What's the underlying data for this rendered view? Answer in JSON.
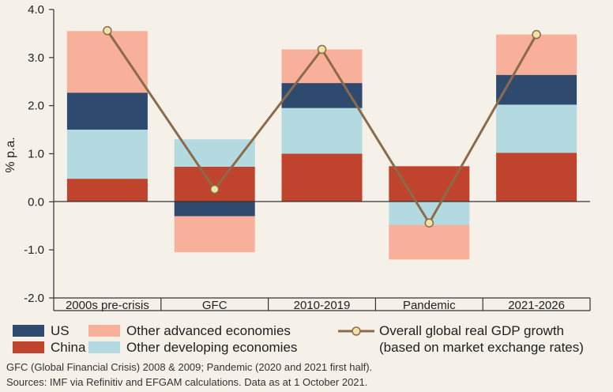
{
  "chart_data": {
    "type": "bar",
    "stacked": true,
    "categories": [
      "2000s pre-crisis",
      "GFC",
      "2010-2019",
      "Pandemic",
      "2021-2026"
    ],
    "ylabel": "% p.a.",
    "ylim": [
      -2.0,
      4.0
    ],
    "yticks": [
      -2.0,
      -1.0,
      0.0,
      1.0,
      2.0,
      3.0,
      4.0
    ],
    "ytick_labels": [
      "-2.0",
      "-1.0",
      "0.0",
      "1.0",
      "2.0",
      "3.0",
      "4.0"
    ],
    "series": [
      {
        "name": "China",
        "color": "#c0432d",
        "values": [
          0.48,
          0.73,
          1.0,
          0.74,
          1.02
        ]
      },
      {
        "name": "Other developing economies",
        "color": "#b3dae0",
        "values": [
          1.02,
          0.57,
          0.95,
          -0.48,
          1.0
        ]
      },
      {
        "name": "US",
        "color": "#2f4a6f",
        "values": [
          0.77,
          -0.3,
          0.52,
          0.0,
          0.62
        ]
      },
      {
        "name": "Other advanced economies",
        "color": "#f8b09a",
        "values": [
          1.28,
          -0.75,
          0.7,
          -0.72,
          0.84
        ]
      }
    ],
    "line": {
      "name": "Overall global real GDP growth (based on market exchange rates)",
      "color": "#8b6b4a",
      "values": [
        3.56,
        0.26,
        3.17,
        -0.44,
        3.48
      ]
    }
  },
  "legend": {
    "us": "US",
    "china": "China",
    "other_advanced": "Other advanced economies",
    "other_developing": "Other developing economies",
    "gdp_line_1": "Overall global real GDP growth",
    "gdp_line_2": "(based on market exchange rates)"
  },
  "footnotes": {
    "line1": "GFC (Global Financial Crisis) 2008 & 2009; Pandemic (2020 and 2021 first half).",
    "line2": "Sources: IMF via Refinitiv and EFGAM calculations. Data as at 1 October 2021."
  }
}
